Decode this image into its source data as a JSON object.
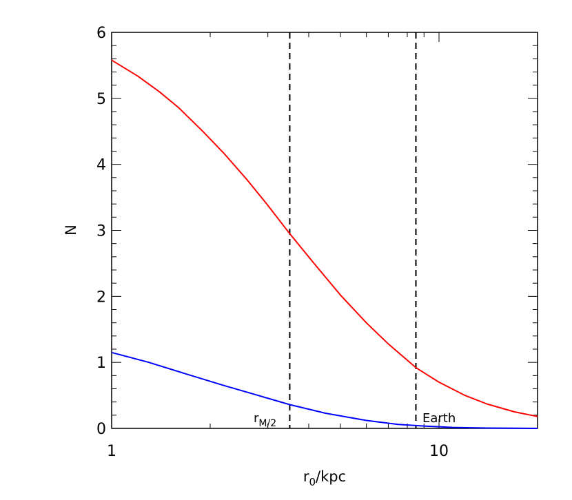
{
  "chart_data": {
    "type": "line",
    "xscale": "log",
    "xlim": [
      1,
      20
    ],
    "ylim": [
      0,
      6
    ],
    "grid": false,
    "x_ticks": [
      1,
      10
    ],
    "x_tick_labels": [
      "1",
      "10"
    ],
    "y_ticks": [
      0,
      1,
      2,
      3,
      4,
      5,
      6
    ],
    "y_tick_labels": [
      "0",
      "1",
      "2",
      "3",
      "4",
      "5",
      "6"
    ],
    "xlabel": {
      "base": "r",
      "sub": "0",
      "rest": "/kpc"
    },
    "ylabel": "N",
    "series": [
      {
        "color": "#ff0000",
        "x": [
          1,
          1.2,
          1.4,
          1.6,
          1.9,
          2.2,
          2.6,
          3.0,
          3.5,
          4.2,
          5.0,
          6.0,
          7.0,
          8.5,
          10,
          12,
          14,
          17,
          20
        ],
        "y": [
          5.58,
          5.34,
          5.1,
          4.86,
          4.5,
          4.17,
          3.76,
          3.38,
          2.95,
          2.47,
          2.02,
          1.6,
          1.28,
          0.92,
          0.7,
          0.5,
          0.37,
          0.25,
          0.18
        ]
      },
      {
        "color": "#0000ff",
        "x": [
          1,
          1.3,
          1.7,
          2.2,
          2.8,
          3.5,
          4.5,
          6.0,
          7.5,
          9,
          11,
          14,
          17,
          20
        ],
        "y": [
          1.15,
          1.0,
          0.82,
          0.65,
          0.5,
          0.36,
          0.23,
          0.12,
          0.06,
          0.035,
          0.015,
          0.005,
          0.002,
          0.0
        ]
      }
    ],
    "vlines": [
      {
        "x": 3.5,
        "style": "dashed",
        "label": {
          "base": "r",
          "sub": "M/2"
        }
      },
      {
        "x": 8.5,
        "style": "dashed",
        "label": {
          "text": "Earth"
        }
      }
    ]
  }
}
